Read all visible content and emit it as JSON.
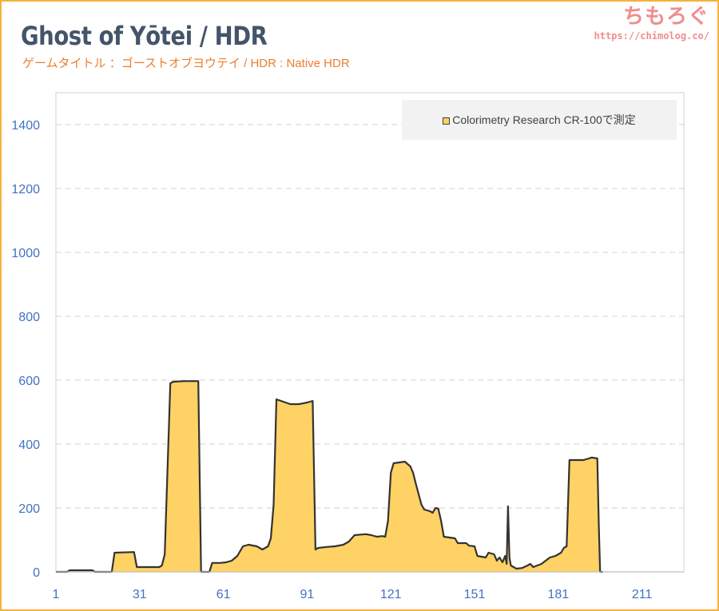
{
  "header": {
    "title": "Ghost of Yōtei / HDR",
    "subtitle": "ゲームタイトル ：ゴーストオブヨウテイ / HDR : Native HDR"
  },
  "brand": {
    "name": "ちもろぐ",
    "url": "https://chimolog.co/"
  },
  "colors": {
    "frame": "#f3b23a",
    "title": "#44546a",
    "subtitle": "#ed7d31",
    "brand": "#f08d8d",
    "axis_labels": "#4472c4",
    "area_fill": "#ffd265",
    "area_line": "#333333"
  },
  "chart_data": {
    "type": "area",
    "title": "Ghost of Yōtei / HDR",
    "subtitle": "ゲームタイトル ：ゴーストオブヨウテイ / HDR : Native HDR",
    "xlabel": "",
    "ylabel": "",
    "xlim": [
      1,
      226
    ],
    "ylim": [
      0,
      1500
    ],
    "x_ticks": [
      1,
      31,
      61,
      91,
      121,
      151,
      181,
      211
    ],
    "y_ticks": [
      0,
      200,
      400,
      600,
      800,
      1000,
      1200,
      1400
    ],
    "grid": "horizontal dashed",
    "legend_position": "top-right",
    "series": [
      {
        "name": "Colorimetry Research CR-100で測定",
        "color": "#ffd265",
        "points": [
          [
            1,
            0
          ],
          [
            5,
            0
          ],
          [
            6,
            5
          ],
          [
            14,
            5
          ],
          [
            15,
            0
          ],
          [
            21,
            0
          ],
          [
            22,
            60
          ],
          [
            29,
            62
          ],
          [
            30,
            15
          ],
          [
            38,
            15
          ],
          [
            39,
            20
          ],
          [
            40,
            55
          ],
          [
            42,
            590
          ],
          [
            43,
            595
          ],
          [
            47,
            597
          ],
          [
            52,
            597
          ],
          [
            53,
            0
          ],
          [
            56,
            0
          ],
          [
            57,
            28
          ],
          [
            60,
            28
          ],
          [
            62,
            30
          ],
          [
            64,
            35
          ],
          [
            66,
            50
          ],
          [
            68,
            80
          ],
          [
            70,
            85
          ],
          [
            73,
            80
          ],
          [
            75,
            70
          ],
          [
            77,
            80
          ],
          [
            78,
            105
          ],
          [
            79,
            210
          ],
          [
            80,
            540
          ],
          [
            85,
            525
          ],
          [
            88,
            525
          ],
          [
            91,
            530
          ],
          [
            93,
            535
          ],
          [
            94,
            70
          ],
          [
            95,
            75
          ],
          [
            98,
            78
          ],
          [
            101,
            80
          ],
          [
            104,
            85
          ],
          [
            106,
            95
          ],
          [
            108,
            115
          ],
          [
            112,
            118
          ],
          [
            114,
            115
          ],
          [
            116,
            110
          ],
          [
            118,
            112
          ],
          [
            119,
            110
          ],
          [
            120,
            160
          ],
          [
            121,
            310
          ],
          [
            122,
            340
          ],
          [
            126,
            345
          ],
          [
            128,
            330
          ],
          [
            129,
            310
          ],
          [
            130,
            275
          ],
          [
            132,
            210
          ],
          [
            133,
            195
          ],
          [
            135,
            190
          ],
          [
            136,
            185
          ],
          [
            137,
            200
          ],
          [
            138,
            198
          ],
          [
            139,
            160
          ],
          [
            140,
            110
          ],
          [
            144,
            105
          ],
          [
            145,
            90
          ],
          [
            148,
            90
          ],
          [
            149,
            82
          ],
          [
            151,
            80
          ],
          [
            152,
            50
          ],
          [
            155,
            45
          ],
          [
            156,
            60
          ],
          [
            158,
            55
          ],
          [
            159,
            35
          ],
          [
            160,
            45
          ],
          [
            161,
            30
          ],
          [
            162,
            50
          ],
          [
            162.5,
            25
          ],
          [
            163,
            205
          ],
          [
            163.5,
            45
          ],
          [
            164,
            20
          ],
          [
            166,
            10
          ],
          [
            168,
            12
          ],
          [
            170,
            20
          ],
          [
            171,
            25
          ],
          [
            172,
            15
          ],
          [
            175,
            25
          ],
          [
            178,
            45
          ],
          [
            180,
            50
          ],
          [
            182,
            60
          ],
          [
            183,
            75
          ],
          [
            184,
            80
          ],
          [
            185,
            350
          ],
          [
            190,
            350
          ],
          [
            192,
            355
          ],
          [
            193,
            358
          ],
          [
            195,
            355
          ],
          [
            195.5,
            150
          ],
          [
            196,
            0
          ],
          [
            197,
            0
          ]
        ]
      }
    ]
  }
}
